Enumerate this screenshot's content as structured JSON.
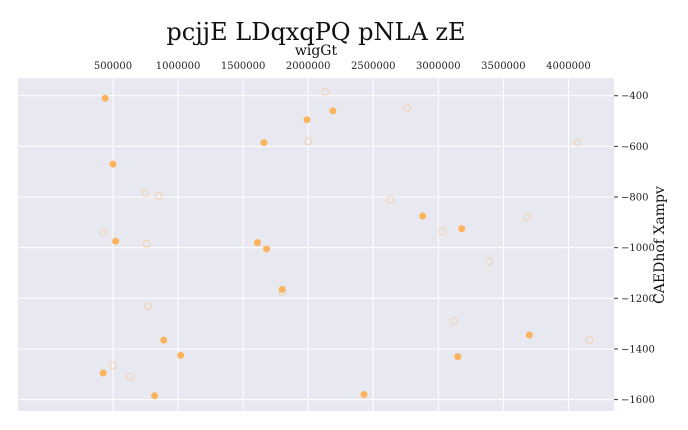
{
  "chart_data": {
    "type": "scatter",
    "title": "pcjjE LDqxqPQ  pNLA zE",
    "xlabel": "wigGt",
    "ylabel": "CAEDhof Xampv",
    "x_axis_position": "top",
    "y_axis_position": "right",
    "xlim": [
      -230000,
      4350000
    ],
    "ylim": [
      -1645,
      -330
    ],
    "x_ticks": [
      500000,
      1000000,
      1500000,
      2000000,
      2500000,
      3000000,
      3500000,
      4000000
    ],
    "y_ticks": [
      -400,
      -600,
      -800,
      -1000,
      -1200,
      -1400,
      -1600
    ],
    "grid": true,
    "legend": "none",
    "colors": {
      "plot_bg": "#e8e8f0",
      "grid": "#ffffff",
      "filled": "#fdb35e",
      "hollow": "#fdb35e"
    },
    "series": [
      {
        "style": "filled",
        "x": [
          440000,
          500000,
          520000,
          820000,
          890000,
          1020000,
          1610000,
          1660000,
          1680000,
          1800000,
          1990000,
          2190000,
          2430000,
          2880000,
          3150000,
          3180000,
          3700000,
          425000
        ],
        "y": [
          -410,
          -670,
          -975,
          -1585,
          -1365,
          -1425,
          -980,
          -585,
          -1005,
          -1165,
          -495,
          -460,
          -1580,
          -875,
          -1430,
          -925,
          -1345,
          -1495
        ]
      },
      {
        "style": "hollow",
        "x": [
          425000,
          500000,
          630000,
          750000,
          760000,
          770000,
          850000,
          1800000,
          2000000,
          2130000,
          2630000,
          2760000,
          3030000,
          3120000,
          3390000,
          3680000,
          4070000,
          4160000
        ],
        "y": [
          -940,
          -1465,
          -1510,
          -785,
          -985,
          -1230,
          -795,
          -1175,
          -580,
          -385,
          -810,
          -450,
          -935,
          -1290,
          -1055,
          -880,
          -585,
          -1365
        ]
      }
    ]
  }
}
